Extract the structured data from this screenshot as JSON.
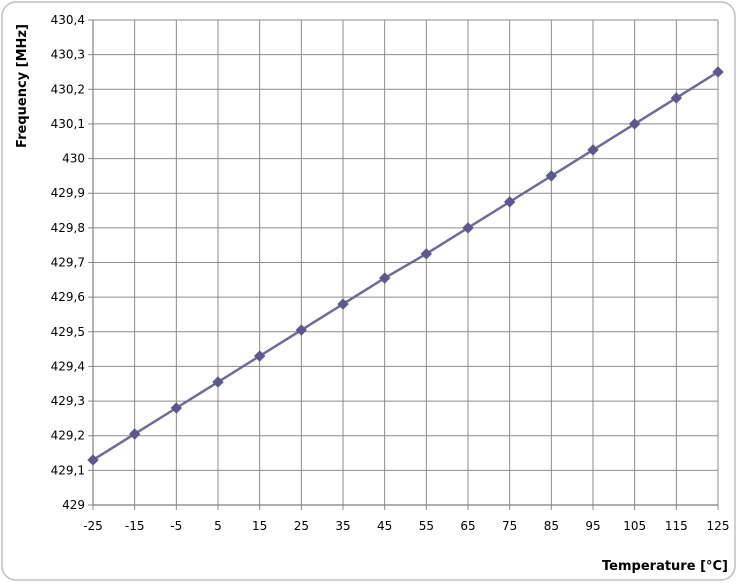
{
  "chart_data": {
    "type": "line",
    "title": "",
    "xlabel": "Temperature [°C]",
    "ylabel": "Frequency [MHz]",
    "x_tick_labels": [
      "-25",
      "-15",
      "-5",
      "5",
      "15",
      "25",
      "35",
      "45",
      "55",
      "65",
      "75",
      "85",
      "95",
      "105",
      "115",
      "125"
    ],
    "y_tick_labels": [
      "429",
      "429,1",
      "429,2",
      "429,3",
      "429,4",
      "429,5",
      "429,6",
      "429,7",
      "429,8",
      "429,9",
      "430",
      "430,1",
      "430,2",
      "430,3",
      "430,4"
    ],
    "x": [
      -25,
      -15,
      -5,
      5,
      15,
      25,
      35,
      45,
      55,
      65,
      75,
      85,
      95,
      105,
      115,
      125
    ],
    "series": [
      {
        "values": [
          429.13,
          429.205,
          429.28,
          429.355,
          429.43,
          429.505,
          429.58,
          429.655,
          429.725,
          429.8,
          429.875,
          429.95,
          430.025,
          430.1,
          430.175,
          430.25
        ]
      }
    ],
    "xlim": [
      -25,
      125
    ],
    "ylim": [
      429,
      430.4
    ],
    "grid": true,
    "legend": "none",
    "colors": {
      "series": "#6b6b9e",
      "marker": "#5a5a8c",
      "grid": "#8c8c8c",
      "frame": "#bfbfbf",
      "background": "#ffffff"
    }
  }
}
